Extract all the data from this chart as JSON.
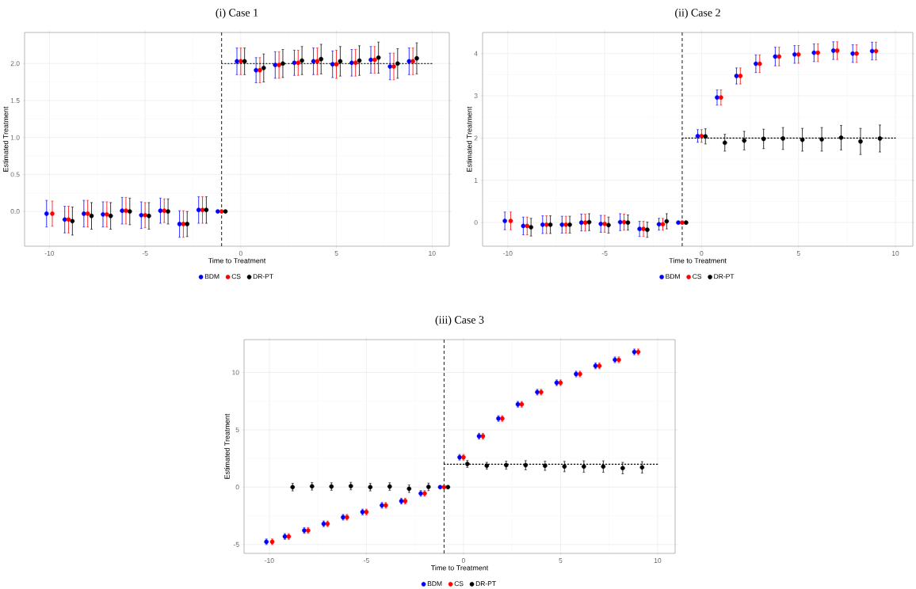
{
  "chart_data": [
    {
      "type": "scatter",
      "title": "(i) Case 1",
      "xlabel": "Time to Treatment",
      "ylabel": "Estimated Treatment",
      "xlim": [
        -11.3,
        10.9
      ],
      "ylim": [
        -0.47,
        2.42
      ],
      "xticks": [
        -10,
        -5,
        0,
        5,
        10
      ],
      "yticks": [
        {
          "value": 0,
          "label": "0.0"
        },
        {
          "value": 0.5,
          "label": "0.5"
        },
        {
          "value": 1,
          "label": "1.0"
        },
        {
          "value": 1.5,
          "label": "1.5"
        },
        {
          "value": 2,
          "label": "2.0"
        }
      ],
      "grid": true,
      "legend": "bottom",
      "ref_lines": [
        {
          "axis": "x",
          "value": -1,
          "color": "#000000",
          "line_style": "dashed"
        }
      ],
      "series": [
        {
          "name": "BDM",
          "color": "#0000ff",
          "x": [
            -10.15,
            -9.2,
            -8.2,
            -7.2,
            -6.2,
            -5.2,
            -4.2,
            -3.2,
            -2.2,
            -1.2,
            -0.2,
            0.8,
            1.8,
            2.8,
            3.8,
            4.8,
            5.8,
            6.8,
            7.8,
            8.8
          ],
          "values": [
            -0.03,
            -0.11,
            -0.03,
            -0.04,
            0.01,
            -0.05,
            0.01,
            -0.17,
            0.02,
            0,
            2.03,
            1.91,
            1.98,
            2.01,
            2.03,
            1.99,
            2.01,
            2.05,
            1.96,
            2.03
          ],
          "errors": [
            0.18,
            0.18,
            0.18,
            0.17,
            0.18,
            0.18,
            0.17,
            0.18,
            0.18,
            null,
            0.18,
            0.17,
            0.18,
            0.17,
            0.18,
            0.18,
            0.18,
            0.18,
            0.18,
            0.18
          ]
        },
        {
          "name": "CS",
          "color": "#ff0000",
          "x": [
            -9.85,
            -9,
            -8,
            -7,
            -6,
            -5,
            -4,
            -3,
            -2,
            -1,
            0,
            1,
            2,
            3,
            4,
            5,
            6,
            7,
            8,
            9
          ],
          "values": [
            -0.03,
            -0.11,
            -0.03,
            -0.04,
            0.01,
            -0.05,
            0.01,
            -0.17,
            0.02,
            0,
            2.03,
            1.91,
            1.98,
            2.01,
            2.03,
            1.99,
            2.01,
            2.05,
            1.96,
            2.03
          ],
          "errors": [
            0.17,
            0.18,
            0.18,
            0.17,
            0.18,
            0.17,
            0.16,
            0.18,
            0.18,
            null,
            0.18,
            0.17,
            0.18,
            0.17,
            0.18,
            0.19,
            0.18,
            0.18,
            0.18,
            0.18
          ]
        },
        {
          "name": "DR-PT",
          "color": "#000000",
          "x": [
            -8.8,
            -7.8,
            -6.8,
            -5.8,
            -4.8,
            -3.8,
            -2.8,
            -1.8,
            -0.8,
            0.2,
            1.2,
            2.2,
            3.2,
            4.2,
            5.2,
            6.2,
            7.2,
            8.2,
            9.2
          ],
          "values": [
            -0.13,
            -0.06,
            -0.06,
            0.0,
            -0.06,
            0.0,
            -0.17,
            0.02,
            0,
            2.03,
            1.94,
            2.0,
            2.04,
            2.06,
            2.03,
            2.04,
            2.08,
            2.0,
            2.07
          ],
          "errors": [
            0.19,
            0.18,
            0.18,
            0.18,
            0.18,
            0.17,
            0.17,
            0.18,
            null,
            0.18,
            0.19,
            0.19,
            0.19,
            0.2,
            0.2,
            0.2,
            0.21,
            0.2,
            0.21
          ]
        },
        {
          "type": "line",
          "color": "#000000",
          "line_style": "dotted",
          "marker": "none",
          "x": [
            -1,
            10
          ],
          "values": [
            2,
            2
          ]
        }
      ]
    },
    {
      "type": "scatter",
      "title": "(ii) Case 2",
      "xlabel": "Time to Treatment",
      "ylabel": "Estimated Treatment",
      "xlim": [
        -11.3,
        10.9
      ],
      "ylim": [
        -0.56,
        4.5
      ],
      "xticks": [
        -10,
        -5,
        0,
        5,
        10
      ],
      "yticks": [
        0,
        1,
        2,
        3,
        4
      ],
      "grid": true,
      "legend": "bottom",
      "ref_lines": [
        {
          "axis": "x",
          "value": -1,
          "color": "#000000",
          "line_style": "dashed"
        }
      ],
      "series": [
        {
          "name": "BDM",
          "color": "#0000ff",
          "x": [
            -10.15,
            -9.2,
            -8.2,
            -7.2,
            -6.2,
            -5.2,
            -4.2,
            -3.2,
            -2.2,
            -1.2,
            -0.2,
            0.8,
            1.8,
            2.8,
            3.8,
            4.8,
            5.8,
            6.8,
            7.8,
            8.8
          ],
          "values": [
            0.04,
            -0.08,
            -0.05,
            -0.05,
            0,
            -0.03,
            0.01,
            -0.15,
            -0.04,
            0,
            2.05,
            2.96,
            3.47,
            3.76,
            3.93,
            3.98,
            4.02,
            4.07,
            4.0,
            4.06
          ],
          "errors": [
            0.21,
            0.21,
            0.21,
            0.2,
            0.2,
            0.2,
            0.2,
            0.18,
            0.14,
            null,
            0.15,
            0.18,
            0.19,
            0.21,
            0.22,
            0.21,
            0.21,
            0.21,
            0.21,
            0.21
          ]
        },
        {
          "name": "CS",
          "color": "#ff0000",
          "x": [
            -9.85,
            -9,
            -8,
            -7,
            -6,
            -5,
            -4,
            -3,
            -2,
            -1,
            0,
            1,
            2,
            3,
            4,
            5,
            6,
            7,
            8,
            9
          ],
          "values": [
            0.04,
            -0.08,
            -0.05,
            -0.05,
            0,
            -0.03,
            0.01,
            -0.15,
            -0.04,
            0,
            2.05,
            2.96,
            3.47,
            3.76,
            3.93,
            3.98,
            4.02,
            4.07,
            4.0,
            4.06
          ],
          "errors": [
            0.21,
            0.21,
            0.21,
            0.2,
            0.2,
            0.2,
            0.19,
            0.18,
            0.14,
            null,
            0.15,
            0.18,
            0.19,
            0.21,
            0.22,
            0.21,
            0.21,
            0.21,
            0.21,
            0.21
          ]
        },
        {
          "name": "DR-PT",
          "color": "#000000",
          "x": [
            -8.8,
            -7.8,
            -6.8,
            -5.8,
            -4.8,
            -3.8,
            -2.8,
            -1.8,
            -0.8,
            0.2,
            1.2,
            2.2,
            3.2,
            4.2,
            5.2,
            6.2,
            7.2,
            8.2,
            9.2
          ],
          "values": [
            -0.11,
            -0.05,
            -0.05,
            0.01,
            -0.06,
            0,
            -0.17,
            0.03,
            0,
            2.04,
            1.89,
            1.94,
            1.98,
            1.99,
            1.96,
            1.97,
            2.01,
            1.92,
            1.99
          ],
          "errors": [
            0.21,
            0.21,
            0.2,
            0.2,
            0.19,
            0.18,
            0.18,
            0.18,
            null,
            0.18,
            0.2,
            0.22,
            0.23,
            0.26,
            0.27,
            0.28,
            0.29,
            0.31,
            0.32
          ]
        },
        {
          "type": "line",
          "color": "#000000",
          "line_style": "dotted",
          "marker": "none",
          "x": [
            -1,
            10
          ],
          "values": [
            2,
            2
          ]
        }
      ]
    },
    {
      "type": "scatter",
      "title": "(iii) Case 3",
      "xlabel": "Time to Treatment",
      "ylabel": "Estimated Treatment",
      "xlim": [
        -11.3,
        10.9
      ],
      "ylim": [
        -5.78,
        12.86
      ],
      "xticks": [
        -10,
        -5,
        0,
        5,
        10
      ],
      "yticks": [
        -5,
        0,
        5,
        10
      ],
      "grid": true,
      "legend": "bottom",
      "ref_lines": [
        {
          "axis": "x",
          "value": -1,
          "color": "#000000",
          "line_style": "dashed"
        }
      ],
      "series": [
        {
          "name": "BDM",
          "color": "#0000ff",
          "x": [
            -10.15,
            -9.2,
            -8.2,
            -7.2,
            -6.2,
            -5.2,
            -4.2,
            -3.2,
            -2.2,
            -1.2,
            -0.2,
            0.8,
            1.8,
            2.8,
            3.8,
            4.8,
            5.8,
            6.8,
            7.8,
            8.8
          ],
          "values": [
            -4.77,
            -4.31,
            -3.78,
            -3.2,
            -2.63,
            -2.17,
            -1.59,
            -1.22,
            -0.55,
            0,
            2.6,
            4.44,
            5.98,
            7.22,
            8.28,
            9.1,
            9.86,
            10.57,
            11.1,
            11.79
          ],
          "errors": [
            0.25,
            0.25,
            0.25,
            0.25,
            0.25,
            0.25,
            0.25,
            0.25,
            0.25,
            null,
            0.25,
            0.25,
            0.25,
            0.25,
            0.25,
            0.25,
            0.25,
            0.25,
            0.25,
            0.25
          ]
        },
        {
          "name": "CS",
          "color": "#ff0000",
          "x": [
            -9.85,
            -9,
            -8,
            -7,
            -6,
            -5,
            -4,
            -3,
            -2,
            -1,
            0,
            1,
            2,
            3,
            4,
            5,
            6,
            7,
            8,
            9
          ],
          "values": [
            -4.77,
            -4.31,
            -3.78,
            -3.2,
            -2.63,
            -2.17,
            -1.59,
            -1.22,
            -0.55,
            0,
            2.6,
            4.44,
            5.98,
            7.22,
            8.28,
            9.1,
            9.86,
            10.57,
            11.1,
            11.79
          ],
          "errors": [
            0.25,
            0.25,
            0.25,
            0.25,
            0.25,
            0.25,
            0.25,
            0.25,
            0.25,
            null,
            0.25,
            0.25,
            0.25,
            0.25,
            0.25,
            0.25,
            0.25,
            0.25,
            0.25,
            0.25
          ]
        },
        {
          "name": "DR-PT",
          "color": "#000000",
          "x": [
            -8.8,
            -7.8,
            -6.8,
            -5.8,
            -4.8,
            -3.8,
            -2.8,
            -1.8,
            -0.8,
            0.2,
            1.2,
            2.2,
            3.2,
            4.2,
            5.2,
            6.2,
            7.2,
            8.2,
            9.2
          ],
          "values": [
            0,
            0.07,
            0.05,
            0.09,
            0,
            0.05,
            -0.14,
            0.02,
            0,
            2.02,
            1.86,
            1.91,
            1.91,
            1.86,
            1.79,
            1.79,
            1.79,
            1.66,
            1.72
          ],
          "errors": [
            0.33,
            0.33,
            0.33,
            0.33,
            0.33,
            0.33,
            0.33,
            0.33,
            null,
            0.3,
            0.3,
            0.35,
            0.4,
            0.4,
            0.45,
            0.5,
            0.5,
            0.5,
            0.5
          ]
        },
        {
          "type": "line",
          "color": "#000000",
          "line_style": "dotted",
          "marker": "none",
          "x": [
            -1,
            10
          ],
          "values": [
            2,
            2
          ]
        }
      ]
    }
  ]
}
